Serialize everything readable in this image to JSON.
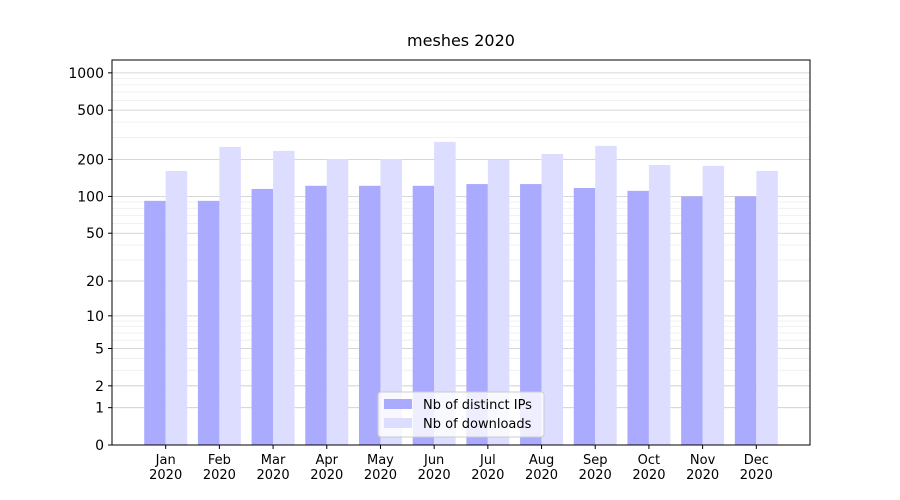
{
  "chart_data": {
    "type": "bar",
    "title": "meshes 2020",
    "categories": [
      "Jan\n2020",
      "Feb\n2020",
      "Mar\n2020",
      "Apr\n2020",
      "May\n2020",
      "Jun\n2020",
      "Jul\n2020",
      "Aug\n2020",
      "Sep\n2020",
      "Oct\n2020",
      "Nov\n2020",
      "Dec\n2020"
    ],
    "series": [
      {
        "name": "Nb of distinct IPs",
        "color": "#aaaaff",
        "values": [
          92,
          92,
          115,
          122,
          122,
          122,
          126,
          126,
          117,
          111,
          100,
          100
        ]
      },
      {
        "name": "Nb of downloads",
        "color": "#ddddff",
        "values": [
          161,
          252,
          234,
          201,
          201,
          277,
          198,
          221,
          257,
          180,
          177,
          161
        ]
      }
    ],
    "yscale": "log1p",
    "ylim": [
      0,
      1270
    ],
    "yticks": [
      0,
      1,
      2,
      5,
      10,
      20,
      50,
      100,
      200,
      500,
      1000
    ],
    "grid": true,
    "legend": "lower center"
  }
}
